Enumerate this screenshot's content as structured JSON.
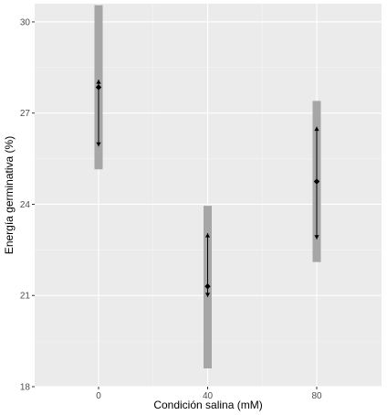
{
  "chart_data": {
    "type": "errorbar",
    "xlabel": "Condición salina (mM)",
    "ylabel": "Energía germinativa (%)",
    "categories": [
      "0",
      "40",
      "80"
    ],
    "yticks": [
      18,
      21,
      24,
      27,
      30
    ],
    "ylim": [
      18,
      30.6
    ],
    "grid": true,
    "background_color": "#ebebeb",
    "points": [
      {
        "x": "0",
        "mean": 27.85,
        "lower": 25.9,
        "upper": 28.1,
        "band_lower": 25.15,
        "band_upper": 30.55
      },
      {
        "x": "40",
        "mean": 21.3,
        "lower": 20.95,
        "upper": 23.05,
        "band_lower": 18.6,
        "band_upper": 23.95
      },
      {
        "x": "80",
        "mean": 24.75,
        "lower": 22.85,
        "upper": 26.55,
        "band_lower": 22.1,
        "band_upper": 27.4
      }
    ],
    "band_color": "#a6a6a6",
    "marker_color": "#000000"
  }
}
